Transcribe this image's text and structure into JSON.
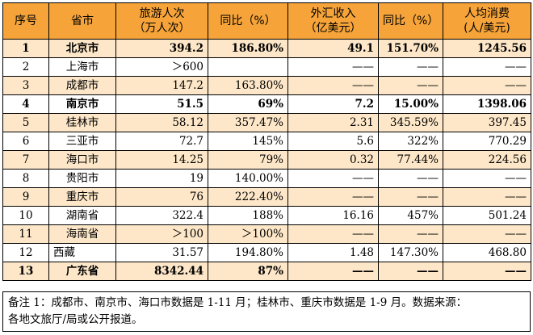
{
  "headers": {
    "col1": "序号",
    "col2": "省市",
    "col3_line1": "旅游人次",
    "col3_line2": "（万人次）",
    "col4": "同比（%）",
    "col5_line1": "外汇收入",
    "col5_line2": "（亿美元）",
    "col6": "同比（%）",
    "col7_line1": "人均消费",
    "col7_line2": "(人/美元)"
  },
  "rows": [
    {
      "no": "1",
      "city": "北京市",
      "visitors": "394.2",
      "yoy1": "186.80%",
      "income": "49.1",
      "yoy2": "151.70%",
      "per": "1245.56",
      "bold": true
    },
    {
      "no": "2",
      "city": "上海市",
      "visitors": "＞600",
      "yoy1": "",
      "income": "——",
      "yoy2": "——",
      "per": "——",
      "bold": false
    },
    {
      "no": "3",
      "city": "成都市",
      "visitors": "147.2",
      "yoy1": "163.80%",
      "income": "——",
      "yoy2": "——",
      "per": "——",
      "bold": false
    },
    {
      "no": "4",
      "city": "南京市",
      "visitors": "51.5",
      "yoy1": "69%",
      "income": "7.2",
      "yoy2": "15.00%",
      "per": "1398.06",
      "bold": true
    },
    {
      "no": "5",
      "city": "桂林市",
      "visitors": "58.12",
      "yoy1": "357.47%",
      "income": "2.31",
      "yoy2": "345.59%",
      "per": "397.45",
      "bold": false
    },
    {
      "no": "6",
      "city": "三亚市",
      "visitors": "72.7",
      "yoy1": "145%",
      "income": "5.6",
      "yoy2": "322%",
      "per": "770.29",
      "bold": false
    },
    {
      "no": "7",
      "city": "海口市",
      "visitors": "14.25",
      "yoy1": "79%",
      "income": "0.32",
      "yoy2": "77.44%",
      "per": "224.56",
      "bold": false
    },
    {
      "no": "8",
      "city": "贵阳市",
      "visitors": "19",
      "yoy1": "140.00%",
      "income": "——",
      "yoy2": "——",
      "per": "——",
      "bold": false
    },
    {
      "no": "9",
      "city": "重庆市",
      "visitors": "76",
      "yoy1": "222.40%",
      "income": "——",
      "yoy2": "——",
      "per": "——",
      "bold": false
    },
    {
      "no": "10",
      "city": "湖南省",
      "visitors": "322.4",
      "yoy1": "188%",
      "income": "16.16",
      "yoy2": "457%",
      "per": "501.24",
      "bold": false
    },
    {
      "no": "11",
      "city": "海南省",
      "visitors": "＞100",
      "yoy1": "＞100%",
      "income": "——",
      "yoy2": "——",
      "per": "——",
      "bold": false
    },
    {
      "no": "12",
      "city": "西藏",
      "visitors": "31.57",
      "yoy1": "194.80%",
      "income": "1.48",
      "yoy2": "147.30%",
      "per": "468.80",
      "bold": false
    },
    {
      "no": "13",
      "city": "广东省",
      "visitors": "8342.44",
      "yoy1": "87%",
      "income": "——",
      "yoy2": "——",
      "per": "——",
      "bold": true
    }
  ],
  "note_line1": "备注 1：成都市、南京市、海口市数据是 1-11 月；桂林市、重庆市数据是 1-9 月。数据来源：",
  "note_line2": "各地文旅厅/局或公开报道。"
}
